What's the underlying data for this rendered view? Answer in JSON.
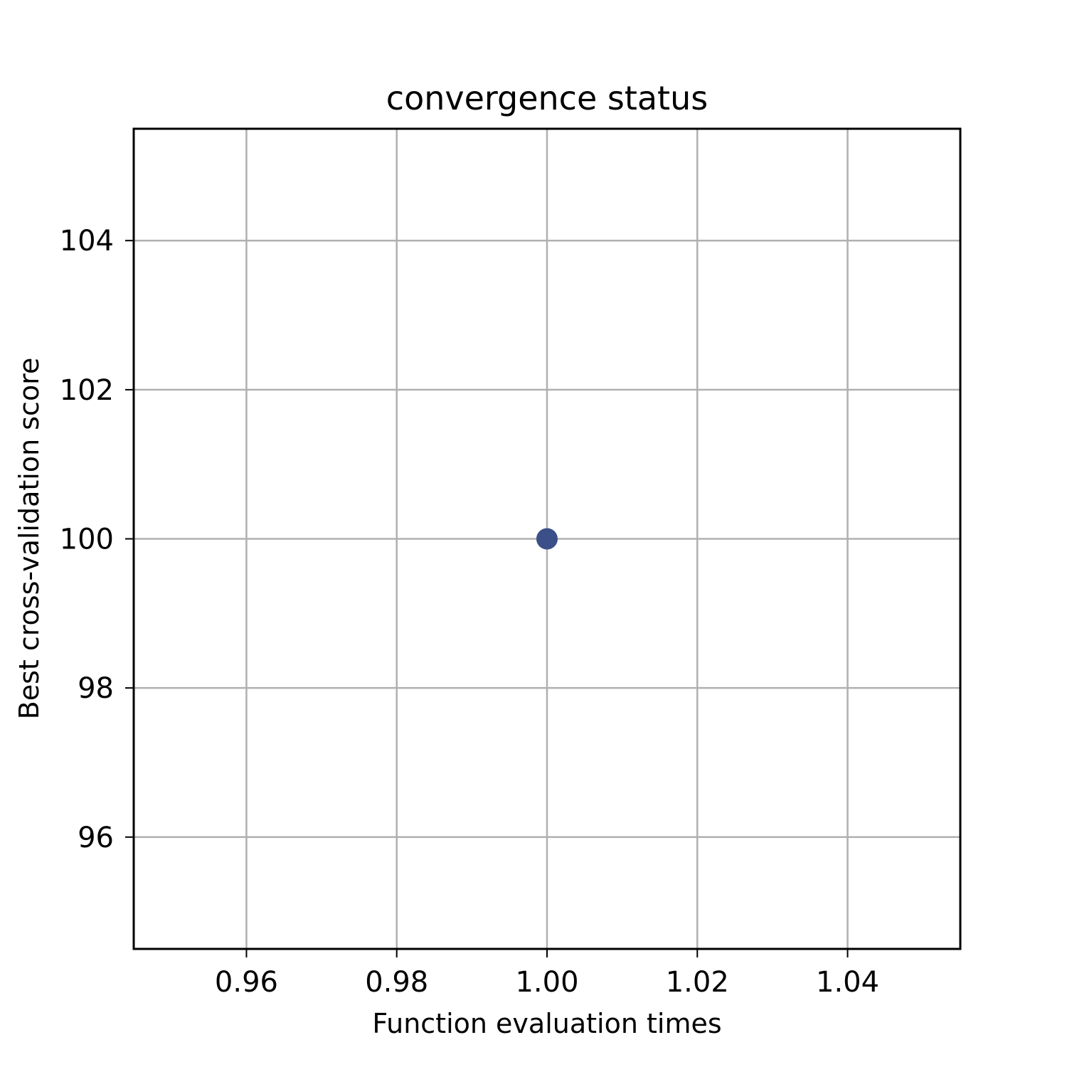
{
  "chart_data": {
    "type": "scatter",
    "title": "convergence status",
    "xlabel": "Function evaluation times",
    "ylabel": "Best cross-validation score",
    "xlim": [
      0.945,
      1.055
    ],
    "ylim": [
      94.5,
      105.5
    ],
    "xticks": [
      0.96,
      0.98,
      1.0,
      1.02,
      1.04
    ],
    "xtick_labels": [
      "0.96",
      "0.98",
      "1.00",
      "1.02",
      "1.04"
    ],
    "yticks": [
      96,
      98,
      100,
      102,
      104
    ],
    "ytick_labels": [
      "96",
      "98",
      "100",
      "102",
      "104"
    ],
    "grid": true,
    "legend": "none",
    "series": [
      {
        "color": "#3b5088",
        "points": [
          {
            "x": 1.0,
            "y": 100
          }
        ]
      }
    ]
  }
}
